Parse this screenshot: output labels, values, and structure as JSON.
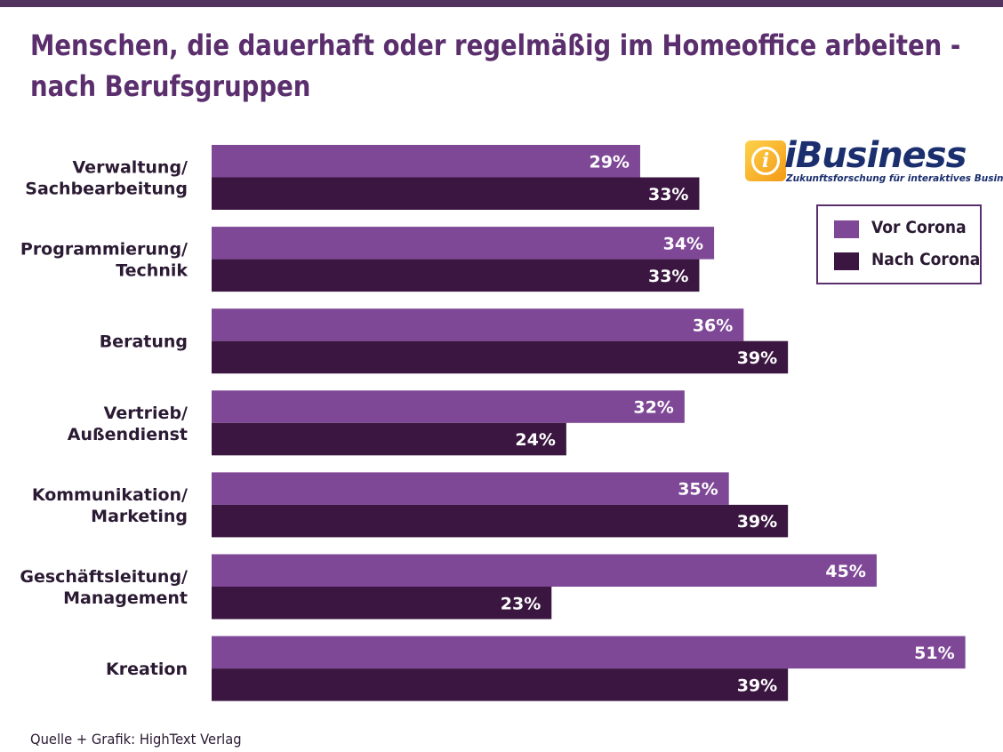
{
  "title": {
    "line1": "Menschen, die dauerhaft oder regelmäßig im Homeoffice arbeiten -",
    "line2": "nach Berufsgruppen"
  },
  "logo": {
    "icon_letter": "i",
    "word": "iBusiness",
    "tagline": "Zukunftsforschung für interaktives Business"
  },
  "source": "Quelle + Grafik: HighText Verlag",
  "colors": {
    "title": "#5b2f6d",
    "vor_corona": "#7e4896",
    "nach_corona": "#3a1640",
    "topbar": "#52325f"
  },
  "chart_data": {
    "type": "bar",
    "orientation": "horizontal",
    "categories": [
      [
        "Verwaltung/",
        "Sachbearbeitung"
      ],
      [
        "Programmierung/",
        "Technik"
      ],
      [
        "Beratung"
      ],
      [
        "Vertrieb/",
        "Außendienst"
      ],
      [
        "Kommunikation/",
        "Marketing"
      ],
      [
        "Geschäftsleitung/",
        "Management"
      ],
      [
        "Kreation"
      ]
    ],
    "series": [
      {
        "name": "Vor Corona",
        "values": [
          29,
          34,
          36,
          32,
          35,
          45,
          51
        ],
        "labels": [
          "29%",
          "34%",
          "36%",
          "32%",
          "35%",
          "45%",
          "51%"
        ]
      },
      {
        "name": "Nach Corona",
        "values": [
          33,
          33,
          39,
          24,
          39,
          23,
          39
        ],
        "labels": [
          "33%",
          "33%",
          "39%",
          "24%",
          "39%",
          "23%",
          "39%"
        ]
      }
    ],
    "unit": "%",
    "xlim": [
      0,
      51
    ],
    "grid": false,
    "legend_position": "top-right"
  }
}
